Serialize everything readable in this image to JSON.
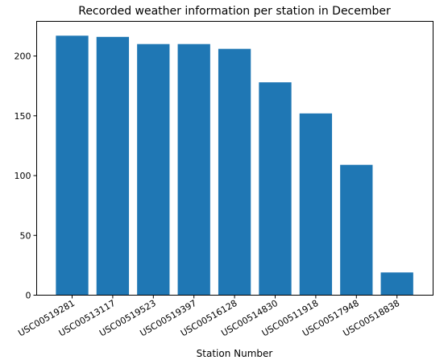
{
  "chart_data": {
    "type": "bar",
    "title": "Recorded weather information per station in December",
    "xlabel": "Station Number",
    "ylabel": "",
    "categories": [
      "USC00519281",
      "USC00513117",
      "USC00519523",
      "USC00519397",
      "USC00516128",
      "USC00514830",
      "USC00511918",
      "USC00517948",
      "USC00518838"
    ],
    "values": [
      217,
      216,
      210,
      210,
      206,
      178,
      152,
      109,
      19
    ],
    "ylim": [
      0,
      229
    ],
    "yticks": [
      0,
      50,
      100,
      150,
      200
    ],
    "grid": false,
    "bar_color": "#1f77b4"
  }
}
